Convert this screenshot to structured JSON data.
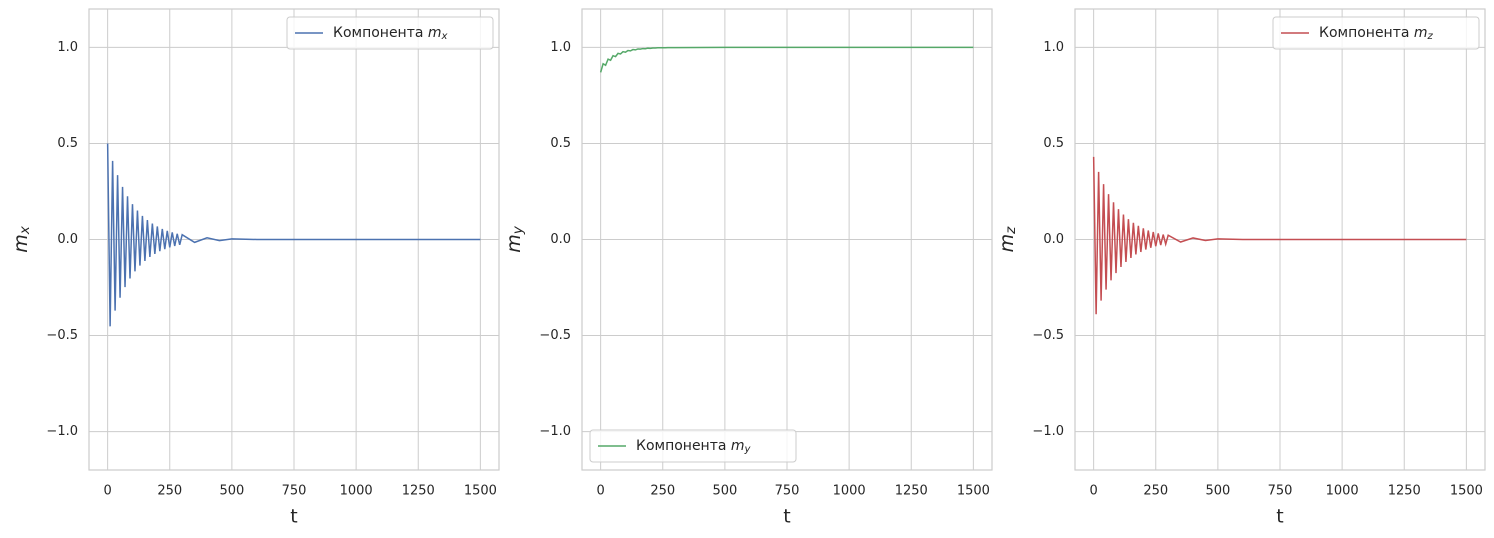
{
  "chart_data": [
    {
      "type": "line",
      "xlabel": "t",
      "ylabel": "m_x",
      "xlim": [
        -75,
        1575
      ],
      "ylim": [
        -1.2,
        1.2
      ],
      "xticks": [
        0,
        250,
        500,
        750,
        1000,
        1250,
        1500
      ],
      "yticks": [
        -1.0,
        -0.5,
        0.0,
        0.5,
        1.0
      ],
      "grid": true,
      "legend_loc": "upper right",
      "x": [
        0,
        10,
        20,
        30,
        40,
        50,
        60,
        70,
        80,
        90,
        100,
        110,
        120,
        130,
        140,
        150,
        160,
        170,
        180,
        190,
        200,
        210,
        220,
        230,
        240,
        250,
        260,
        270,
        280,
        290,
        300,
        350,
        400,
        450,
        500,
        600,
        750,
        1000,
        1250,
        1500
      ],
      "series": [
        {
          "name": "Компонента m_x",
          "color": "#4c72b0",
          "values": [
            0.5,
            -0.452,
            0.409,
            -0.37,
            0.335,
            -0.303,
            0.274,
            -0.248,
            0.225,
            -0.203,
            0.184,
            -0.166,
            0.151,
            -0.136,
            0.123,
            -0.112,
            0.101,
            -0.091,
            0.083,
            -0.075,
            0.068,
            -0.061,
            0.055,
            -0.05,
            0.045,
            -0.041,
            0.037,
            -0.034,
            0.03,
            -0.028,
            0.025,
            -0.015,
            0.009,
            -0.006,
            0.003,
            0,
            0,
            0,
            0,
            0
          ]
        }
      ]
    },
    {
      "type": "line",
      "xlabel": "t",
      "ylabel": "m_y",
      "xlim": [
        -75,
        1575
      ],
      "ylim": [
        -1.2,
        1.2
      ],
      "xticks": [
        0,
        250,
        500,
        750,
        1000,
        1250,
        1500
      ],
      "yticks": [
        -1.0,
        -0.5,
        0.0,
        0.5,
        1.0
      ],
      "grid": true,
      "legend_loc": "lower left",
      "x": [
        0,
        10,
        20,
        30,
        40,
        50,
        60,
        70,
        80,
        90,
        100,
        110,
        120,
        130,
        140,
        150,
        160,
        170,
        180,
        190,
        200,
        210,
        220,
        230,
        240,
        250,
        260,
        270,
        280,
        290,
        300,
        500,
        750,
        1000,
        1250,
        1500
      ],
      "series": [
        {
          "name": "Компонента m_y",
          "color": "#55a868",
          "values": [
            0.87,
            0.915,
            0.907,
            0.939,
            0.933,
            0.957,
            0.952,
            0.969,
            0.966,
            0.978,
            0.975,
            0.984,
            0.982,
            0.989,
            0.987,
            0.992,
            0.991,
            0.994,
            0.993,
            0.996,
            0.995,
            0.997,
            0.997,
            0.998,
            0.998,
            0.998,
            0.998,
            0.999,
            0.999,
            0.999,
            0.999,
            1,
            1,
            1,
            1,
            1
          ]
        }
      ]
    },
    {
      "type": "line",
      "xlabel": "t",
      "ylabel": "m_z",
      "xlim": [
        -75,
        1575
      ],
      "ylim": [
        -1.2,
        1.2
      ],
      "xticks": [
        0,
        250,
        500,
        750,
        1000,
        1250,
        1500
      ],
      "yticks": [
        -1.0,
        -0.5,
        0.0,
        0.5,
        1.0
      ],
      "grid": true,
      "legend_loc": "upper right",
      "x": [
        0,
        10,
        20,
        30,
        40,
        50,
        60,
        70,
        80,
        90,
        100,
        110,
        120,
        130,
        140,
        150,
        160,
        170,
        180,
        190,
        200,
        210,
        220,
        230,
        240,
        250,
        260,
        270,
        280,
        290,
        300,
        350,
        400,
        450,
        500,
        600,
        750,
        1000,
        1250,
        1500
      ],
      "series": [
        {
          "name": "Компонента m_z",
          "color": "#c44e52",
          "values": [
            0.43,
            -0.389,
            0.352,
            -0.318,
            0.288,
            -0.261,
            0.236,
            -0.213,
            0.194,
            -0.175,
            0.158,
            -0.143,
            0.13,
            -0.117,
            0.106,
            -0.096,
            0.087,
            -0.078,
            0.071,
            -0.065,
            0.058,
            -0.052,
            0.047,
            -0.043,
            0.039,
            -0.035,
            0.032,
            -0.029,
            0.026,
            -0.024,
            0.022,
            -0.013,
            0.008,
            -0.005,
            0.003,
            0,
            0,
            0,
            0,
            0
          ]
        }
      ]
    }
  ]
}
